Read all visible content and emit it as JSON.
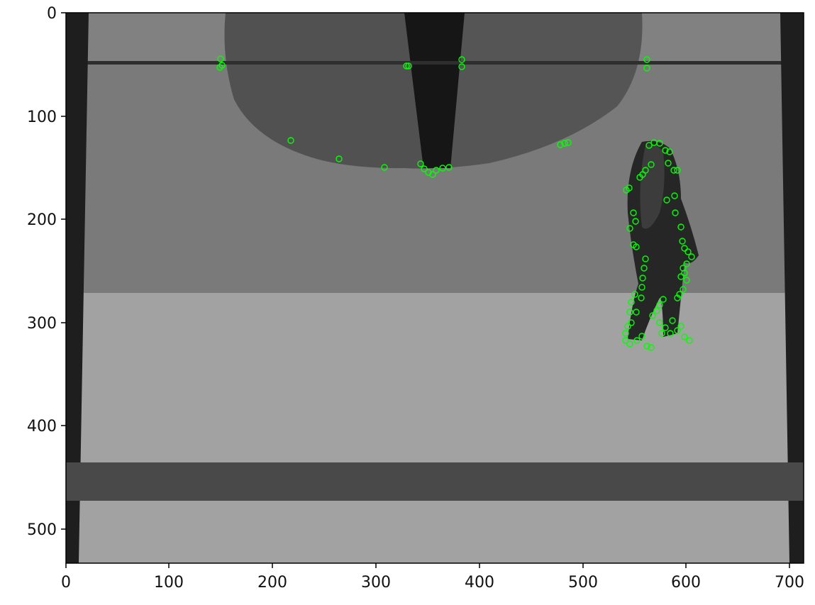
{
  "figure": {
    "y_ticks": [
      "0",
      "100",
      "200",
      "300",
      "400",
      "500"
    ],
    "x_ticks": [
      "0",
      "100",
      "200",
      "300",
      "400",
      "500",
      "600",
      "700"
    ]
  },
  "image": {
    "subject": "Grayscale rendered corridor scene with a walking figure; green circle markers indicate detected keypoints",
    "marker_color": "#00ff00",
    "background_wall_color": "#7a7a7a",
    "floor_color": "#a2a2a2",
    "floor_band_color": "#494949"
  }
}
